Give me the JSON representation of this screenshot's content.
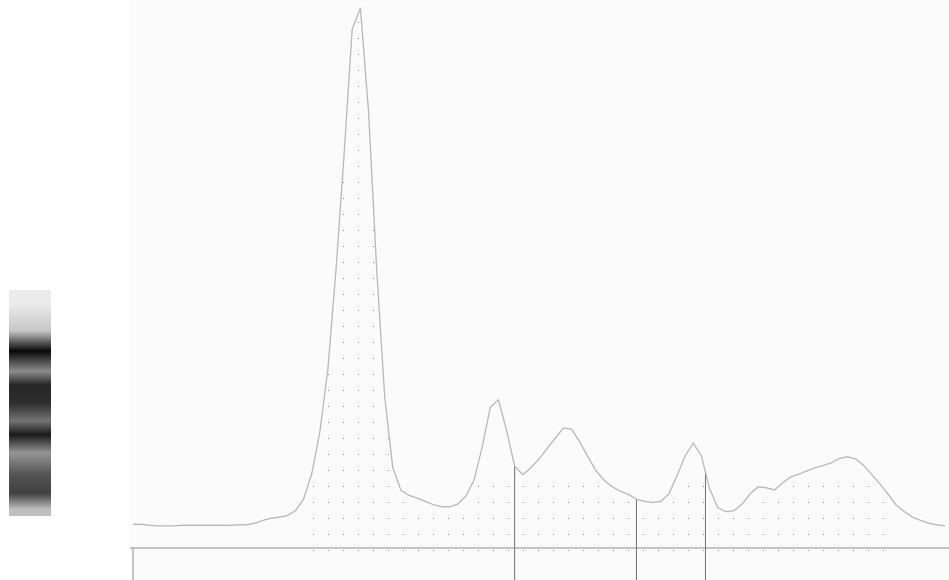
{
  "chart_data": {
    "type": "line",
    "title": "",
    "xlabel": "",
    "ylabel": "",
    "xlim": [
      0,
      100
    ],
    "ylim": [
      0,
      100
    ],
    "grid": false,
    "legend": "none",
    "colors": {
      "curve": "#b8b8b8",
      "divider": "#6e6e6e",
      "baseline": "#8c8c8c",
      "stipple": "#8a8a8a",
      "background": "#fbfbfb"
    },
    "series": [
      {
        "x": [
          0,
          1,
          2,
          3,
          4,
          5,
          6,
          7,
          8,
          9,
          10,
          11,
          12,
          13,
          14,
          15,
          16,
          17,
          18,
          19,
          20,
          21,
          22,
          23,
          24,
          25,
          26,
          27,
          28,
          29,
          30,
          31,
          32,
          33,
          34,
          35,
          36,
          37,
          38,
          39,
          40,
          41,
          42,
          43,
          44,
          45,
          46,
          47,
          48,
          49,
          50,
          51,
          52,
          53,
          54,
          55,
          56,
          57,
          58,
          59,
          60,
          61,
          62,
          63,
          64,
          65,
          66,
          67,
          68,
          69,
          70,
          71,
          72,
          73,
          74,
          75,
          76,
          77,
          78,
          79,
          80,
          81,
          82,
          83,
          84,
          85,
          86,
          87,
          88,
          89,
          90,
          91,
          92,
          93,
          94,
          95,
          96,
          97,
          98,
          99,
          100
        ],
        "values": [
          5.1,
          5.1,
          4.9,
          4.8,
          4.8,
          4.8,
          4.9,
          4.9,
          4.9,
          4.9,
          4.9,
          4.9,
          4.9,
          5.0,
          5.0,
          5.3,
          5.8,
          6.2,
          6.4,
          6.7,
          7.6,
          9.7,
          14.3,
          22.0,
          33.7,
          51.9,
          73.1,
          96.1,
          100.0,
          81.1,
          52.2,
          28.5,
          15.5,
          11.3,
          10.4,
          9.9,
          9.3,
          8.7,
          8.3,
          8.3,
          8.8,
          10.3,
          13.2,
          19.3,
          26.6,
          28.0,
          22.4,
          15.8,
          14.2,
          15.5,
          17.1,
          19.0,
          20.9,
          22.8,
          22.6,
          20.3,
          17.6,
          15.0,
          13.2,
          12.0,
          11.2,
          10.6,
          9.7,
          9.3,
          9.1,
          9.3,
          10.7,
          14.0,
          17.7,
          20.0,
          17.7,
          11.7,
          8.2,
          7.4,
          7.6,
          8.8,
          10.7,
          12.0,
          11.8,
          11.4,
          12.7,
          13.8,
          14.3,
          14.9,
          15.5,
          15.9,
          16.4,
          17.2,
          17.5,
          17.1,
          15.9,
          14.2,
          12.5,
          10.6,
          8.6,
          7.4,
          6.4,
          5.8,
          5.3,
          5.0,
          4.8
        ]
      }
    ],
    "dividers_x": [
      47,
      62,
      70.5
    ],
    "gel_bands": [
      {
        "pos": 0.06,
        "intensity": 0.08
      },
      {
        "pos": 0.18,
        "intensity": 0.22
      },
      {
        "pos": 0.27,
        "intensity": 0.97
      },
      {
        "pos": 0.36,
        "intensity": 0.45
      },
      {
        "pos": 0.42,
        "intensity": 0.85
      },
      {
        "pos": 0.5,
        "intensity": 0.82
      },
      {
        "pos": 0.58,
        "intensity": 0.55
      },
      {
        "pos": 0.64,
        "intensity": 0.9
      },
      {
        "pos": 0.72,
        "intensity": 0.42
      },
      {
        "pos": 0.82,
        "intensity": 0.68
      },
      {
        "pos": 0.9,
        "intensity": 0.75
      },
      {
        "pos": 0.97,
        "intensity": 0.25
      }
    ]
  }
}
